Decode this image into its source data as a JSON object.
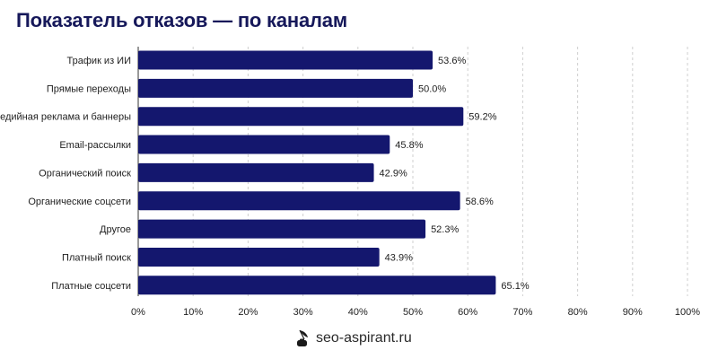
{
  "chart_data": {
    "type": "bar",
    "orientation": "horizontal",
    "title": "Показатель отказов — по каналам",
    "categories": [
      "Трафик из ИИ",
      "Прямые переходы",
      "Медийная реклама и баннеры",
      "Email-рассылки",
      "Органический поиск",
      "Органические соцсети",
      "Другое",
      "Платный поиск",
      "Платные соцсети"
    ],
    "values": [
      53.6,
      50.0,
      59.2,
      45.8,
      42.9,
      58.6,
      52.3,
      43.9,
      65.1
    ],
    "value_labels": [
      "53.6%",
      "50.0%",
      "59.2%",
      "45.8%",
      "42.9%",
      "58.6%",
      "52.3%",
      "43.9%",
      "65.1%"
    ],
    "xlim": [
      0,
      100
    ],
    "x_ticks": [
      0,
      10,
      20,
      30,
      40,
      50,
      60,
      70,
      80,
      90,
      100
    ],
    "x_tick_labels": [
      "0%",
      "10%",
      "20%",
      "30%",
      "40%",
      "50%",
      "60%",
      "70%",
      "80%",
      "90%",
      "100%"
    ],
    "grid": "vertical dashed",
    "legend": "none",
    "bar_color": "#14176e"
  },
  "colors": {
    "title": "#16185a",
    "bar": "#14176e",
    "grid": "#cfcfcf",
    "text": "#1e1e1e"
  },
  "footer": {
    "logo_icon": "inkwell-quill-icon",
    "site": "seo-aspirant.ru"
  }
}
